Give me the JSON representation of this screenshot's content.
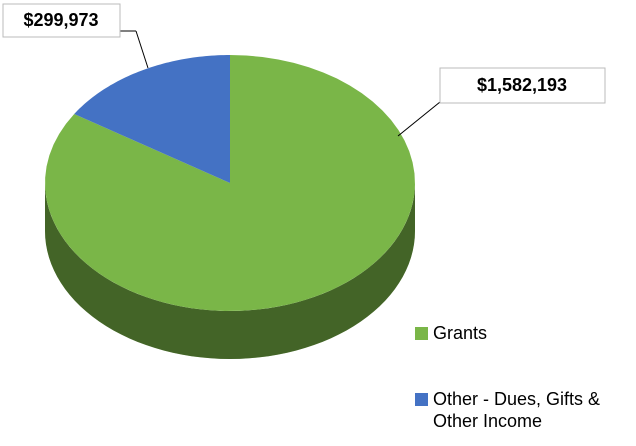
{
  "chart_data": {
    "type": "pie",
    "categories": [
      "Grants",
      "Other - Dues, Gifts & Other Income"
    ],
    "values": [
      1582193,
      299973
    ],
    "value_labels": [
      "$1,582,193",
      "$299,973"
    ],
    "colors": [
      "#7ab648",
      "#4472c4"
    ]
  }
}
